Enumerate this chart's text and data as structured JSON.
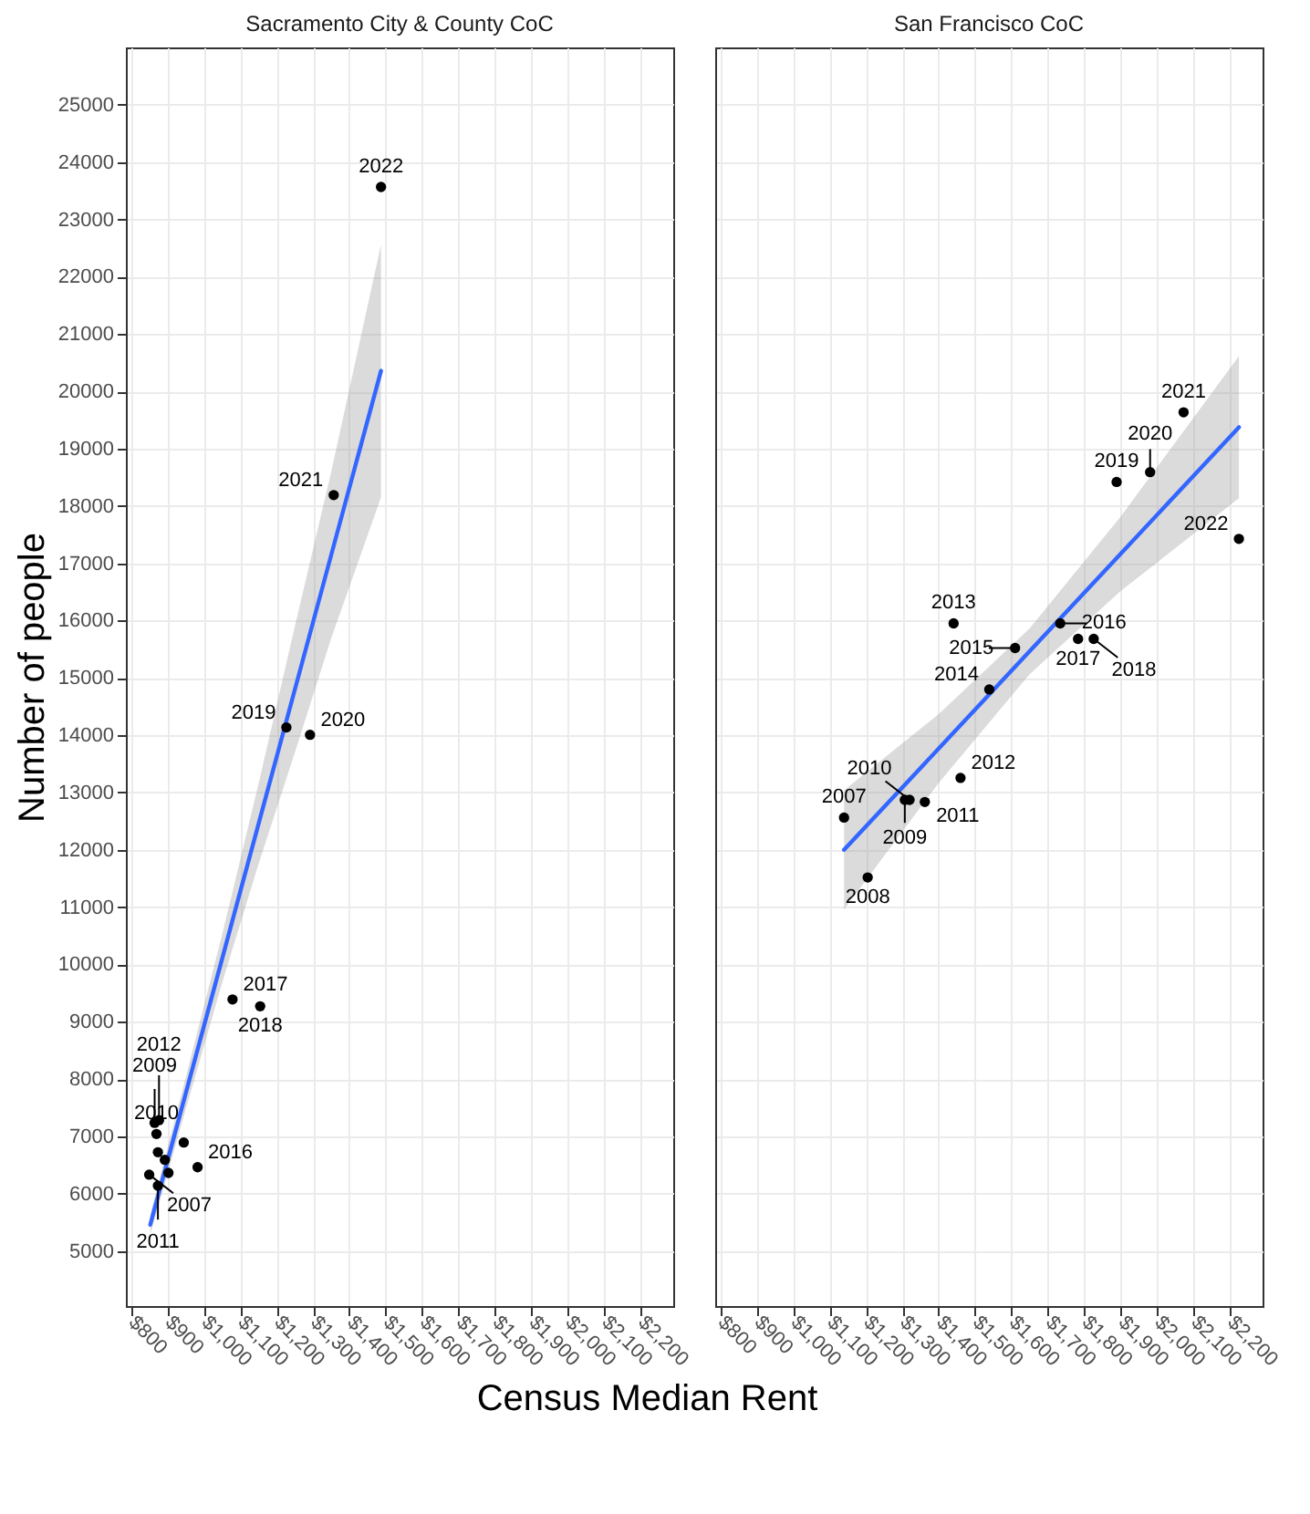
{
  "chart_data": [
    {
      "type": "scatter",
      "title": "Sacramento City & County CoC",
      "xlabel": "Census Median Rent",
      "ylabel": "Number of people",
      "xlim": [
        786,
        2290
      ],
      "xticks": [
        {
          "value": 800,
          "label": "$800"
        },
        {
          "value": 900,
          "label": "$900"
        },
        {
          "value": 1000,
          "label": "$1,000"
        },
        {
          "value": 1100,
          "label": "$1,100"
        },
        {
          "value": 1200,
          "label": "$1,200"
        },
        {
          "value": 1300,
          "label": "$1,300"
        },
        {
          "value": 1400,
          "label": "$1,400"
        },
        {
          "value": 1500,
          "label": "$1,500"
        },
        {
          "value": 1600,
          "label": "$1,600"
        },
        {
          "value": 1700,
          "label": "$1,700"
        },
        {
          "value": 1800,
          "label": "$1,800"
        },
        {
          "value": 1900,
          "label": "$1,900"
        },
        {
          "value": 2000,
          "label": "$2,000"
        },
        {
          "value": 2100,
          "label": "$2,100"
        },
        {
          "value": 2200,
          "label": "$2,200"
        }
      ],
      "ylim": [
        4040,
        26000
      ],
      "yticks": [
        5000,
        6000,
        7000,
        8000,
        9000,
        10000,
        11000,
        12000,
        13000,
        14000,
        15000,
        16000,
        17000,
        18000,
        19000,
        20000,
        21000,
        22000,
        23000,
        24000,
        25000
      ],
      "grid": true,
      "series": [
        {
          "type": "line",
          "color": "#3366ff",
          "x": [
            853,
            950,
            1050,
            1150,
            1250,
            1350,
            1487
          ],
          "values": [
            5460,
            7740,
            10090,
            12440,
            14790,
            17140,
            20357
          ],
          "lower": [
            5290,
            7460,
            9670,
            11740,
            13690,
            15690,
            18150
          ],
          "upper": [
            5630,
            8020,
            10510,
            13140,
            15890,
            18590,
            22560
          ]
        },
        {
          "type": "scatter",
          "color": "#000000",
          "x": [
            850,
            874,
            865,
            870,
            874,
            877,
            893,
            903,
            945,
            983,
            1079,
            1155,
            1227,
            1292,
            1357,
            1487
          ],
          "values": [
            6333,
            6724,
            7236,
            7043,
            6140,
            7284,
            6592,
            6363,
            6893,
            6463,
            9390,
            9270,
            14136,
            14007,
            18190,
            23565
          ]
        }
      ],
      "annotations": [
        {
          "text": "2007",
          "x": 850,
          "y": 6333
        },
        {
          "text": "2009",
          "x": 865,
          "y": 7236
        },
        {
          "text": "2010",
          "x": 870,
          "y": 7043
        },
        {
          "text": "2011",
          "x": 874,
          "y": 6140
        },
        {
          "text": "2012",
          "x": 877,
          "y": 7284
        },
        {
          "text": "2016",
          "x": 983,
          "y": 6463
        },
        {
          "text": "2017",
          "x": 1079,
          "y": 9390
        },
        {
          "text": "2018",
          "x": 1155,
          "y": 9270
        },
        {
          "text": "2019",
          "x": 1227,
          "y": 14136
        },
        {
          "text": "2020",
          "x": 1292,
          "y": 14007
        },
        {
          "text": "2021",
          "x": 1357,
          "y": 18190
        },
        {
          "text": "2022",
          "x": 1487,
          "y": 23565
        }
      ]
    },
    {
      "type": "scatter",
      "title": "San Francisco CoC",
      "tick_labels": "x",
      "xlim": [
        786,
        2290
      ],
      "xticks": [
        {
          "value": 800,
          "label": "$800"
        },
        {
          "value": 900,
          "label": "$900"
        },
        {
          "value": 1000,
          "label": "$1,000"
        },
        {
          "value": 1100,
          "label": "$1,100"
        },
        {
          "value": 1200,
          "label": "$1,200"
        },
        {
          "value": 1300,
          "label": "$1,300"
        },
        {
          "value": 1400,
          "label": "$1,400"
        },
        {
          "value": 1500,
          "label": "$1,500"
        },
        {
          "value": 1600,
          "label": "$1,600"
        },
        {
          "value": 1700,
          "label": "$1,700"
        },
        {
          "value": 1800,
          "label": "$1,800"
        },
        {
          "value": 1900,
          "label": "$1,900"
        },
        {
          "value": 2000,
          "label": "$2,000"
        },
        {
          "value": 2100,
          "label": "$2,100"
        },
        {
          "value": 2200,
          "label": "$2,200"
        }
      ],
      "ylim": [
        4040,
        26000
      ],
      "yticks": [
        5000,
        6000,
        7000,
        8000,
        9000,
        10000,
        11000,
        12000,
        13000,
        14000,
        15000,
        16000,
        17000,
        18000,
        19000,
        20000,
        21000,
        22000,
        23000,
        24000,
        25000
      ],
      "grid": true,
      "series": [
        {
          "type": "line",
          "color": "#3366ff",
          "x": [
            1140,
            1400,
            1650,
            1900,
            2225
          ],
          "values": [
            12000,
            13767,
            15465,
            17164,
            19373
          ],
          "lower": [
            10960,
            13167,
            15065,
            16514,
            18133
          ],
          "upper": [
            13040,
            14367,
            15865,
            17814,
            20613
          ]
        },
        {
          "type": "scatter",
          "color": "#000000",
          "x": [
            1140,
            1205,
            1307,
            1320,
            1362,
            1460,
            1441,
            1539,
            1610,
            1734,
            1783,
            1826,
            1889,
            1981,
            2073,
            2225
          ],
          "values": [
            12563,
            11518,
            12872,
            12872,
            12834,
            13255,
            15951,
            14798,
            15521,
            15951,
            15680,
            15680,
            18419,
            18590,
            19634,
            17426
          ]
        }
      ],
      "annotations": [
        {
          "text": "2007",
          "x": 1140,
          "y": 12563
        },
        {
          "text": "2008",
          "x": 1205,
          "y": 11518
        },
        {
          "text": "2009",
          "x": 1307,
          "y": 12872
        },
        {
          "text": "2010",
          "x": 1320,
          "y": 12872
        },
        {
          "text": "2011",
          "x": 1362,
          "y": 12834
        },
        {
          "text": "2012",
          "x": 1460,
          "y": 13255
        },
        {
          "text": "2013",
          "x": 1441,
          "y": 15951
        },
        {
          "text": "2014",
          "x": 1539,
          "y": 14798
        },
        {
          "text": "2015",
          "x": 1610,
          "y": 15521
        },
        {
          "text": "2016",
          "x": 1734,
          "y": 15951
        },
        {
          "text": "2017",
          "x": 1783,
          "y": 15680
        },
        {
          "text": "2018",
          "x": 1826,
          "y": 15680
        },
        {
          "text": "2019",
          "x": 1889,
          "y": 18419
        },
        {
          "text": "2020",
          "x": 1981,
          "y": 18590
        },
        {
          "text": "2021",
          "x": 2073,
          "y": 19634
        },
        {
          "text": "2022",
          "x": 2225,
          "y": 17426
        }
      ]
    }
  ]
}
